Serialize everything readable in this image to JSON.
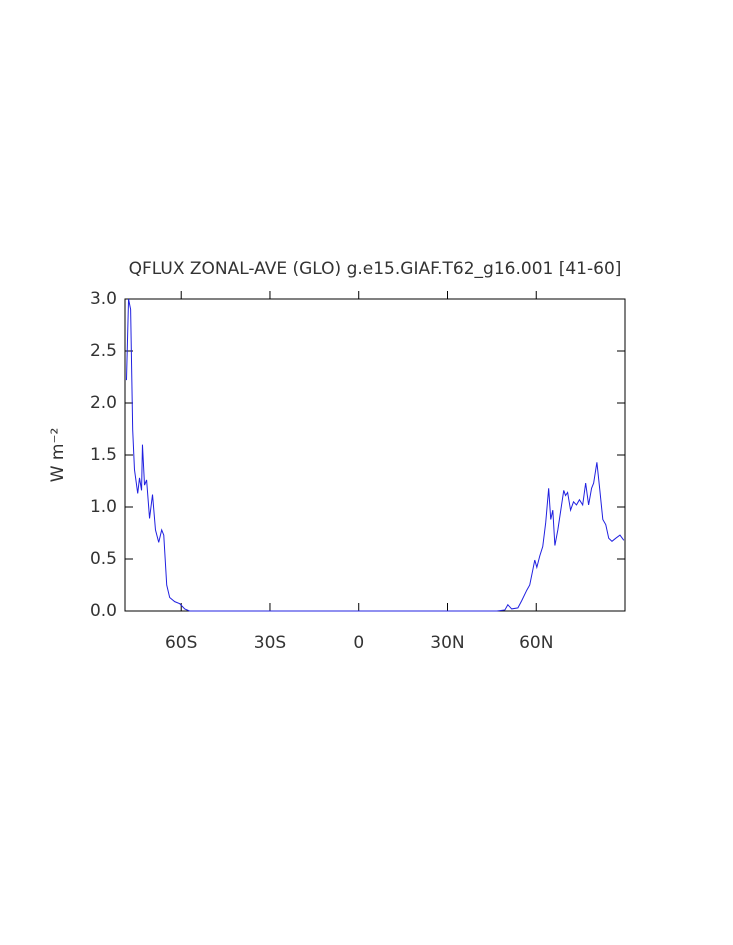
{
  "chart_data": {
    "type": "line",
    "title": "QFLUX ZONAL-AVE (GLO) g.e15.GIAF.T62_g16.001 [41-60]",
    "y_label": "W m⁻²",
    "xlim": [
      -79,
      90
    ],
    "ylim": [
      0,
      3
    ],
    "xticks": [
      {
        "value": -60,
        "label": "60S"
      },
      {
        "value": -30,
        "label": "30S"
      },
      0,
      {
        "value": 30,
        "label": "30N"
      },
      {
        "value": 60,
        "label": "60N"
      }
    ],
    "yticks": [
      {
        "value": 0,
        "label": "0.0"
      },
      0.5,
      {
        "value": 1,
        "label": "1.0"
      },
      1.5,
      {
        "value": 2,
        "label": "2.0"
      },
      2.5,
      {
        "value": 3,
        "label": "3.0"
      }
    ],
    "series": [
      {
        "color": "#2020e0",
        "x": [
          -78.5,
          -77.8,
          -77.1,
          -76.4,
          -75.8,
          -74.7,
          -74.1,
          -73.4,
          -73.1,
          -72.4,
          -71.7,
          -70.7,
          -69.7,
          -68.7,
          -67.6,
          -66.6,
          -65.9,
          -64.9,
          -63.9,
          -62.2,
          -60.5,
          -58.8,
          -57.2,
          46.7,
          49.4,
          50.4,
          51.7,
          53.8,
          55.1,
          56.8,
          57.8,
          58.8,
          59.5,
          60.2,
          61.2,
          62.2,
          63.2,
          64.2,
          64.9,
          65.6,
          66.3,
          67.3,
          68.3,
          69.3,
          69.9,
          70.6,
          71.6,
          72.6,
          73.6,
          74.6,
          75.7,
          76.7,
          77.7,
          78.7,
          79.4,
          80.5,
          81.5,
          82.5,
          83.5,
          84.5,
          85.6,
          86.9,
          88.3,
          89.6
        ],
        "values": [
          2.22,
          3.0,
          2.9,
          1.74,
          1.36,
          1.13,
          1.28,
          1.16,
          1.6,
          1.21,
          1.26,
          0.89,
          1.12,
          0.78,
          0.66,
          0.78,
          0.73,
          0.25,
          0.13,
          0.09,
          0.07,
          0.02,
          0,
          0,
          0.01,
          0.06,
          0.02,
          0.03,
          0.1,
          0.2,
          0.25,
          0.39,
          0.49,
          0.42,
          0.53,
          0.62,
          0.85,
          1.18,
          0.88,
          0.97,
          0.63,
          0.78,
          0.97,
          1.16,
          1.11,
          1.14,
          0.97,
          1.05,
          1.02,
          1.07,
          1.02,
          1.23,
          1.02,
          1.18,
          1.23,
          1.43,
          1.16,
          0.88,
          0.83,
          0.7,
          0.67,
          0.7,
          0.73,
          0.68
        ]
      }
    ]
  }
}
